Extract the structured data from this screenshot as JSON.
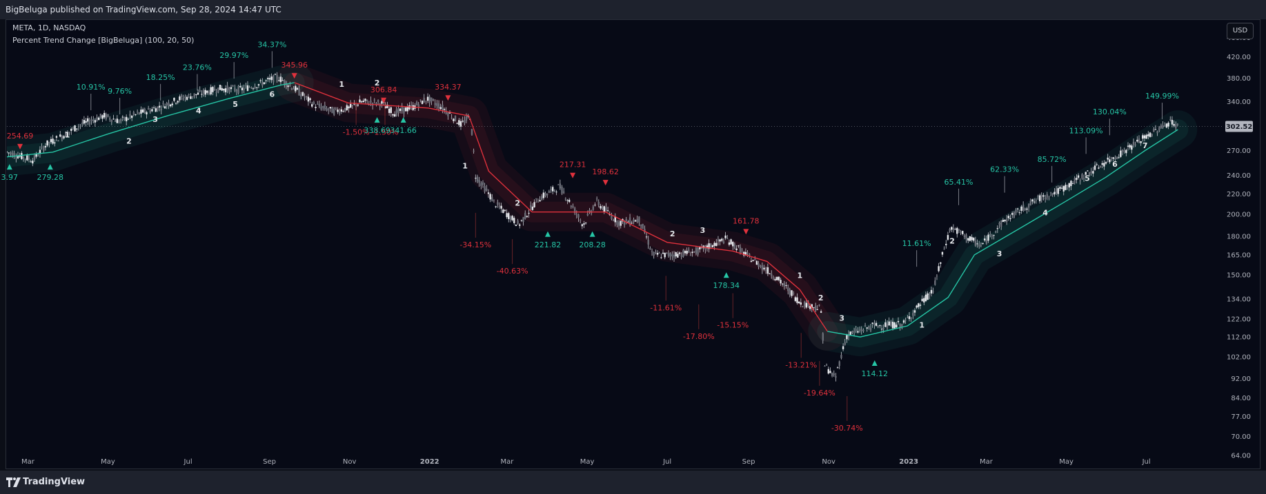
{
  "header": {
    "published": "BigBeluga published on TradingView.com, Sep 28, 2024 14:47 UTC"
  },
  "legend": {
    "symbol": "META, 1D, NASDAQ",
    "indicator": "Percent Trend Change [BigBeluga] (100, 20, 50)"
  },
  "currency_button": "USD",
  "footer": {
    "brand": "TradingView"
  },
  "colors": {
    "bg": "#070a16",
    "up": "#26c6a6",
    "down": "#e0313c",
    "candle": "#c9ccd3"
  },
  "chart_data": {
    "type": "line",
    "title": "",
    "scale": "log",
    "ylim": [
      60,
      500
    ],
    "x_range": [
      "2021-02-13",
      "2023-08-28"
    ],
    "y_ticks": [
      460,
      420,
      380,
      340,
      302.52,
      270,
      240,
      220,
      200,
      180,
      165,
      150,
      134,
      122,
      112,
      102,
      92,
      84,
      77,
      70,
      64
    ],
    "last_price": 302.52,
    "x_ticks": [
      {
        "label": "Mar",
        "date": "2021-03-01"
      },
      {
        "label": "May",
        "date": "2021-05-01"
      },
      {
        "label": "Jul",
        "date": "2021-07-01"
      },
      {
        "label": "Sep",
        "date": "2021-09-01"
      },
      {
        "label": "Nov",
        "date": "2021-11-01"
      },
      {
        "label": "2022",
        "date": "2022-01-01"
      },
      {
        "label": "Mar",
        "date": "2022-03-01"
      },
      {
        "label": "May",
        "date": "2022-05-01"
      },
      {
        "label": "Jul",
        "date": "2022-07-01"
      },
      {
        "label": "Sep",
        "date": "2022-09-01"
      },
      {
        "label": "Nov",
        "date": "2022-11-01"
      },
      {
        "label": "2023",
        "date": "2023-01-01"
      },
      {
        "label": "Mar",
        "date": "2023-03-01"
      },
      {
        "label": "May",
        "date": "2023-05-01"
      },
      {
        "label": "Jul",
        "date": "2023-07-01"
      }
    ],
    "price_path": [
      [
        "2021-02-13",
        268
      ],
      [
        "2021-02-25",
        262
      ],
      [
        "2021-03-05",
        258
      ],
      [
        "2021-03-15",
        278
      ],
      [
        "2021-03-30",
        292
      ],
      [
        "2021-04-10",
        305
      ],
      [
        "2021-04-28",
        318
      ],
      [
        "2021-05-10",
        310
      ],
      [
        "2021-05-25",
        322
      ],
      [
        "2021-06-10",
        332
      ],
      [
        "2021-06-25",
        345
      ],
      [
        "2021-07-08",
        352
      ],
      [
        "2021-07-25",
        362
      ],
      [
        "2021-08-10",
        360
      ],
      [
        "2021-08-25",
        370
      ],
      [
        "2021-09-07",
        382
      ],
      [
        "2021-09-20",
        362
      ],
      [
        "2021-10-05",
        335
      ],
      [
        "2021-10-20",
        325
      ],
      [
        "2021-11-01",
        330
      ],
      [
        "2021-11-10",
        340
      ],
      [
        "2021-11-25",
        338
      ],
      [
        "2021-12-05",
        322
      ],
      [
        "2021-12-20",
        332
      ],
      [
        "2021-12-30",
        345
      ],
      [
        "2022-01-10",
        332
      ],
      [
        "2022-01-25",
        305
      ],
      [
        "2022-02-01",
        318
      ],
      [
        "2022-02-05",
        240
      ],
      [
        "2022-02-20",
        210
      ],
      [
        "2022-03-10",
        190
      ],
      [
        "2022-03-25",
        215
      ],
      [
        "2022-04-10",
        228
      ],
      [
        "2022-04-28",
        190
      ],
      [
        "2022-05-08",
        212
      ],
      [
        "2022-05-25",
        192
      ],
      [
        "2022-06-10",
        195
      ],
      [
        "2022-06-20",
        165
      ],
      [
        "2022-07-05",
        165
      ],
      [
        "2022-07-25",
        168
      ],
      [
        "2022-08-15",
        178
      ],
      [
        "2022-08-30",
        165
      ],
      [
        "2022-09-20",
        150
      ],
      [
        "2022-10-10",
        132
      ],
      [
        "2022-10-26",
        128
      ],
      [
        "2022-10-29",
        98
      ],
      [
        "2022-11-06",
        92
      ],
      [
        "2022-11-15",
        113
      ],
      [
        "2022-12-05",
        118
      ],
      [
        "2022-12-28",
        119
      ],
      [
        "2023-01-20",
        140
      ],
      [
        "2023-02-02",
        188
      ],
      [
        "2023-02-25",
        172
      ],
      [
        "2023-03-15",
        194
      ],
      [
        "2023-04-10",
        215
      ],
      [
        "2023-04-28",
        225
      ],
      [
        "2023-05-20",
        245
      ],
      [
        "2023-06-10",
        265
      ],
      [
        "2023-06-28",
        285
      ],
      [
        "2023-07-20",
        310
      ],
      [
        "2023-07-25",
        302.52
      ]
    ],
    "trend_line": [
      {
        "start": "2021-02-13",
        "end": "2021-09-20",
        "direction": "up",
        "points": [
          [
            "2021-02-13",
            262
          ],
          [
            "2021-03-20",
            268
          ],
          [
            "2021-05-01",
            292
          ],
          [
            "2021-06-15",
            318
          ],
          [
            "2021-08-01",
            345
          ],
          [
            "2021-09-10",
            368
          ],
          [
            "2021-09-20",
            372
          ]
        ]
      },
      {
        "start": "2021-09-20",
        "end": "2022-10-31",
        "direction": "down",
        "points": [
          [
            "2021-09-20",
            372
          ],
          [
            "2021-10-31",
            338
          ],
          [
            "2021-12-31",
            330
          ],
          [
            "2022-01-31",
            318
          ],
          [
            "2022-02-15",
            245
          ],
          [
            "2022-03-20",
            202
          ],
          [
            "2022-05-15",
            202
          ],
          [
            "2022-07-01",
            175
          ],
          [
            "2022-08-20",
            168
          ],
          [
            "2022-09-15",
            160
          ],
          [
            "2022-10-10",
            140
          ],
          [
            "2022-10-31",
            115
          ]
        ]
      },
      {
        "start": "2022-10-31",
        "end": "2023-07-25",
        "direction": "up",
        "points": [
          [
            "2022-10-31",
            115
          ],
          [
            "2022-11-25",
            112
          ],
          [
            "2022-12-31",
            118
          ],
          [
            "2023-01-31",
            135
          ],
          [
            "2023-02-20",
            165
          ],
          [
            "2023-03-31",
            190
          ],
          [
            "2023-04-30",
            212
          ],
          [
            "2023-05-31",
            238
          ],
          [
            "2023-06-30",
            270
          ],
          [
            "2023-07-25",
            298
          ]
        ]
      }
    ],
    "signals": [
      {
        "type": "up",
        "date": "2021-02-15",
        "price": 250,
        "label": "3.97"
      },
      {
        "type": "down",
        "date": "2021-02-23",
        "price": 275,
        "label": "254.69"
      },
      {
        "type": "up",
        "date": "2021-03-18",
        "price": 250,
        "label": "279.28"
      },
      {
        "type": "down",
        "date": "2021-09-20",
        "price": 384,
        "label": "345.96"
      },
      {
        "type": "up",
        "date": "2021-11-22",
        "price": 312,
        "label": "338.69"
      },
      {
        "type": "down",
        "date": "2021-11-27",
        "price": 342,
        "label": "306.84"
      },
      {
        "type": "up",
        "date": "2021-12-12",
        "price": 312,
        "label": "341.66"
      },
      {
        "type": "down",
        "date": "2022-01-15",
        "price": 346,
        "label": "334.37"
      },
      {
        "type": "down",
        "date": "2022-04-20",
        "price": 240,
        "label": "217.31"
      },
      {
        "type": "up",
        "date": "2022-04-01",
        "price": 182,
        "label": "221.82"
      },
      {
        "type": "down",
        "date": "2022-05-15",
        "price": 232,
        "label": "198.62"
      },
      {
        "type": "up",
        "date": "2022-05-05",
        "price": 182,
        "label": "208.28"
      },
      {
        "type": "up",
        "date": "2022-08-15",
        "price": 150,
        "label": "178.34"
      },
      {
        "type": "down",
        "date": "2022-08-30",
        "price": 184,
        "label": "161.78"
      },
      {
        "type": "up",
        "date": "2022-12-06",
        "price": 99,
        "label": "114.12"
      }
    ],
    "pct_labels": [
      {
        "date": "2021-04-18",
        "price": 360,
        "text": "10.91%",
        "color": "up"
      },
      {
        "date": "2021-05-10",
        "price": 353,
        "text": "9.76%",
        "color": "up"
      },
      {
        "date": "2021-06-10",
        "price": 377,
        "text": "18.25%",
        "color": "up"
      },
      {
        "date": "2021-07-08",
        "price": 395,
        "text": "23.76%",
        "color": "up"
      },
      {
        "date": "2021-08-05",
        "price": 418,
        "text": "29.97%",
        "color": "up"
      },
      {
        "date": "2021-09-03",
        "price": 440,
        "text": "34.37%",
        "color": "up"
      },
      {
        "date": "2021-11-06",
        "price": 291,
        "text": "-1.50%",
        "color": "down"
      },
      {
        "date": "2021-11-28",
        "price": 291,
        "text": "-1.50%",
        "color": "down"
      },
      {
        "date": "2022-02-05",
        "price": 171,
        "text": "-34.15%",
        "color": "down"
      },
      {
        "date": "2022-03-05",
        "price": 151,
        "text": "-40.63%",
        "color": "down"
      },
      {
        "date": "2022-06-30",
        "price": 127,
        "text": "-11.61%",
        "color": "down"
      },
      {
        "date": "2022-07-25",
        "price": 111,
        "text": "-17.80%",
        "color": "down"
      },
      {
        "date": "2022-08-20",
        "price": 117,
        "text": "-15.15%",
        "color": "down"
      },
      {
        "date": "2022-10-11",
        "price": 97,
        "text": "-13.21%",
        "color": "down"
      },
      {
        "date": "2022-10-25",
        "price": 85,
        "text": "-19.64%",
        "color": "down"
      },
      {
        "date": "2022-11-15",
        "price": 72,
        "text": "-30.74%",
        "color": "down"
      },
      {
        "date": "2023-01-07",
        "price": 172,
        "text": "11.61%",
        "color": "up"
      },
      {
        "date": "2023-02-08",
        "price": 230,
        "text": "65.41%",
        "color": "up"
      },
      {
        "date": "2023-03-15",
        "price": 244,
        "text": "62.33%",
        "color": "up"
      },
      {
        "date": "2023-04-20",
        "price": 256,
        "text": "85.72%",
        "color": "up"
      },
      {
        "date": "2023-05-16",
        "price": 293,
        "text": "113.09%",
        "color": "up"
      },
      {
        "date": "2023-06-03",
        "price": 320,
        "text": "130.04%",
        "color": "up"
      },
      {
        "date": "2023-07-13",
        "price": 345,
        "text": "149.99%",
        "color": "up"
      }
    ],
    "count_labels": [
      {
        "date": "2021-03-31",
        "price": 287,
        "text": "1"
      },
      {
        "date": "2021-05-17",
        "price": 279,
        "text": "2"
      },
      {
        "date": "2021-06-06",
        "price": 309,
        "text": "3"
      },
      {
        "date": "2021-07-09",
        "price": 322,
        "text": "4"
      },
      {
        "date": "2021-08-06",
        "price": 332,
        "text": "5"
      },
      {
        "date": "2021-09-03",
        "price": 348,
        "text": "6"
      },
      {
        "date": "2021-10-26",
        "price": 365,
        "text": "1"
      },
      {
        "date": "2021-11-22",
        "price": 367,
        "text": "2"
      },
      {
        "date": "2022-01-28",
        "price": 248,
        "text": "1"
      },
      {
        "date": "2022-03-09",
        "price": 208,
        "text": "2"
      },
      {
        "date": "2022-07-05",
        "price": 180,
        "text": "2"
      },
      {
        "date": "2022-07-28",
        "price": 183,
        "text": "3"
      },
      {
        "date": "2022-10-10",
        "price": 148,
        "text": "1"
      },
      {
        "date": "2022-10-26",
        "price": 133,
        "text": "2"
      },
      {
        "date": "2022-11-11",
        "price": 121,
        "text": "3"
      },
      {
        "date": "2023-01-11",
        "price": 117,
        "text": "1"
      },
      {
        "date": "2023-02-03",
        "price": 174,
        "text": "2"
      },
      {
        "date": "2023-03-11",
        "price": 164,
        "text": "3"
      },
      {
        "date": "2023-04-15",
        "price": 199,
        "text": "4"
      },
      {
        "date": "2023-05-17",
        "price": 234,
        "text": "5"
      },
      {
        "date": "2023-06-07",
        "price": 250,
        "text": "6"
      },
      {
        "date": "2023-06-30",
        "price": 273,
        "text": "7"
      }
    ]
  }
}
